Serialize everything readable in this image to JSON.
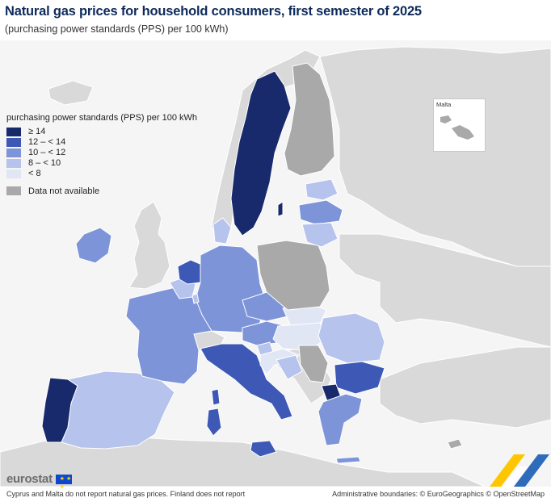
{
  "title": "Natural gas prices for household consumers, first semester of 2025",
  "subtitle": "(purchasing power standards (PPS) per 100 kWh)",
  "legend": {
    "title": "purchasing power standards (PPS) per 100 kWh",
    "items": [
      {
        "label": "≥ 14",
        "color": "#182a6b"
      },
      {
        "label": "12 – < 14",
        "color": "#3e58b5"
      },
      {
        "label": "10 – < 12",
        "color": "#7d94d9"
      },
      {
        "label": "8 – < 10",
        "color": "#b6c3ec"
      },
      {
        "label": "< 8",
        "color": "#e1e6f5"
      }
    ],
    "not_available": {
      "label": "Data not available",
      "color": "#a9a9a9"
    }
  },
  "inset": {
    "label": "Malta"
  },
  "logo": {
    "text": "eurostat",
    "flag_stars": "★ ★ ★"
  },
  "footnote": "Cyprus and Malta do not report natural gas prices. Finland does not report",
  "credits": "Administrative boundaries: © EuroGeographics © OpenStreetMap",
  "colors": {
    "sea": "#f5f5f5",
    "non_eu_land": "#d9d9d9",
    "border": "#ffffff"
  }
}
